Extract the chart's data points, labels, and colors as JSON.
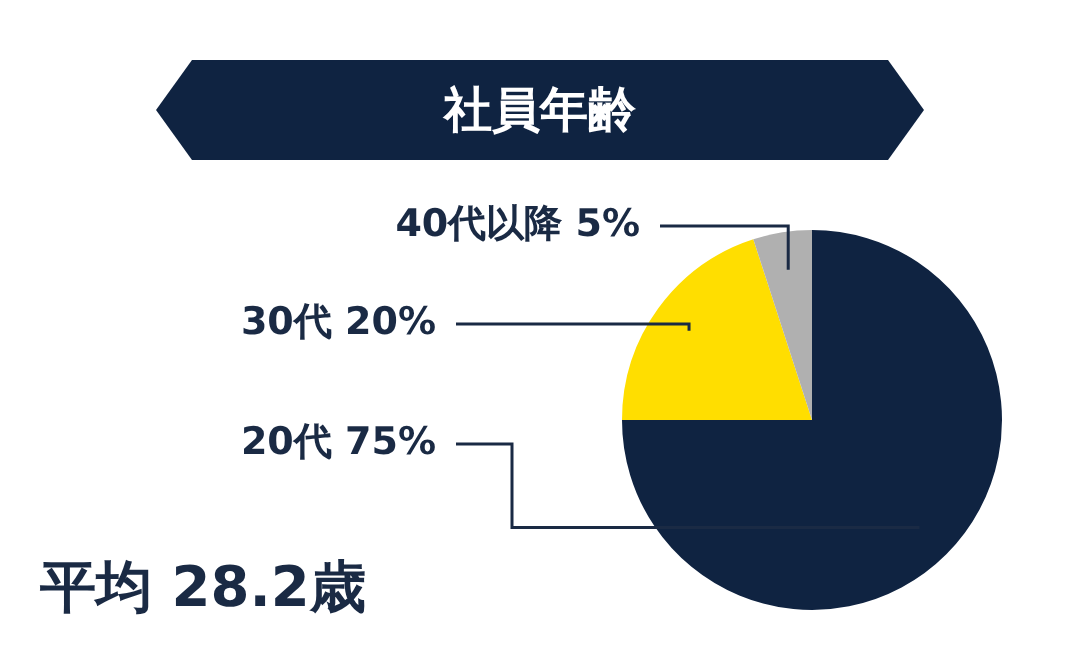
{
  "chart_data": {
    "type": "pie",
    "title": "社員年齢",
    "categories": [
      "20代",
      "30代",
      "40代以降"
    ],
    "values": [
      75,
      20,
      5
    ],
    "value_labels": [
      "75%",
      "20%",
      "5%"
    ],
    "colors": [
      "#0f2341",
      "#ffde00",
      "#b0b0b0"
    ],
    "legend": false,
    "annotations": [
      "平均 28.2歳"
    ]
  }
}
